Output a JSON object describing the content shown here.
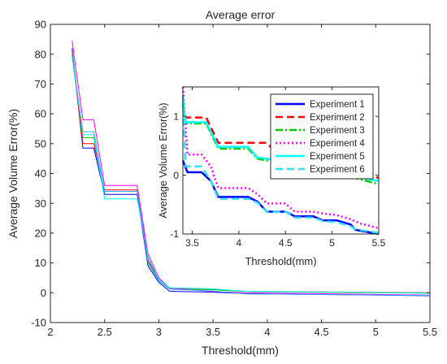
{
  "chart_data": [
    {
      "type": "line",
      "title": "Average error",
      "xlabel": "Threshold(mm)",
      "ylabel": "Average Volume Error(%)",
      "xlim": [
        2,
        5.5
      ],
      "ylim": [
        -10,
        90
      ],
      "xticks": [
        "2",
        "2.5",
        "3",
        "3.5",
        "4",
        "4.5",
        "5",
        "5.5"
      ],
      "yticks": [
        "-10",
        "0",
        "10",
        "20",
        "30",
        "40",
        "50",
        "60",
        "70",
        "80",
        "90"
      ],
      "grid": false,
      "series": [
        {
          "name": "Experiment 1",
          "color": "#0000ff",
          "x": [
            2.2,
            2.3,
            2.4,
            2.5,
            2.8,
            2.9,
            3.0,
            3.1,
            3.5,
            3.8,
            5.5
          ],
          "y": [
            82,
            48.5,
            48.5,
            33,
            33,
            9,
            3.5,
            0.5,
            0.2,
            -0.3,
            -1
          ]
        },
        {
          "name": "Experiment 2",
          "color": "#ff0000",
          "x": [
            2.2,
            2.3,
            2.4,
            2.5,
            2.8,
            2.9,
            3.0,
            3.1,
            3.5,
            3.8,
            5.5
          ],
          "y": [
            80,
            50,
            50,
            34.5,
            34.5,
            11,
            4.5,
            1.5,
            1.2,
            0.5,
            0
          ]
        },
        {
          "name": "Experiment 3",
          "color": "#00cc00",
          "x": [
            2.2,
            2.3,
            2.4,
            2.5,
            2.8,
            2.9,
            3.0,
            3.1,
            3.5,
            3.8,
            5.5
          ],
          "y": [
            81,
            52,
            52,
            34,
            34,
            10,
            4,
            1.3,
            1,
            0.4,
            -0.2
          ]
        },
        {
          "name": "Experiment 4",
          "color": "#ff00ff",
          "x": [
            2.2,
            2.3,
            2.4,
            2.5,
            2.8,
            2.9,
            3.0,
            3.1,
            3.5,
            3.8,
            5.5
          ],
          "y": [
            84.5,
            58,
            58,
            36,
            36,
            13,
            5,
            1.5,
            0.4,
            0,
            -0.8
          ]
        },
        {
          "name": "Experiment 5",
          "color": "#00ffff",
          "x": [
            2.2,
            2.3,
            2.4,
            2.5,
            2.8,
            2.9,
            3.0,
            3.1,
            3.5,
            3.8,
            5.5
          ],
          "y": [
            79,
            53,
            53,
            31.5,
            31.5,
            12,
            4.5,
            1.7,
            1.3,
            0.5,
            -0.1
          ]
        },
        {
          "name": "Experiment 6",
          "color": "#33aaff",
          "x": [
            2.2,
            2.3,
            2.4,
            2.5,
            2.8,
            2.9,
            3.0,
            3.1,
            3.5,
            3.8,
            5.5
          ],
          "y": [
            79.5,
            54,
            54,
            34,
            34,
            10.5,
            4,
            1.2,
            0.6,
            -0.4,
            -0.9
          ]
        }
      ]
    },
    {
      "type": "line",
      "title": "",
      "xlabel": "Threshold(mm)",
      "ylabel": "Average Volume Error(%)",
      "xlim": [
        3.4,
        5.5
      ],
      "ylim": [
        -1,
        1.5
      ],
      "xticks": [
        "3.5",
        "4",
        "4.5",
        "5",
        "5.5"
      ],
      "yticks": [
        "-1",
        "0",
        "1"
      ],
      "legend_position": "top-right",
      "series": [
        {
          "name": "Experiment 1",
          "color": "#0000ff",
          "dash": "solid",
          "x": [
            3.4,
            3.45,
            3.6,
            3.7,
            3.78,
            4.1,
            4.2,
            4.3,
            4.5,
            4.6,
            4.8,
            4.9,
            5.05,
            5.2,
            5.25,
            5.5
          ],
          "y": [
            0.25,
            0.05,
            0.05,
            -0.1,
            -0.37,
            -0.37,
            -0.45,
            -0.62,
            -0.62,
            -0.7,
            -0.7,
            -0.77,
            -0.77,
            -0.84,
            -0.93,
            -1.0
          ]
        },
        {
          "name": "Experiment 2",
          "color": "#ff0000",
          "dash": "dash",
          "x": [
            3.4,
            3.43,
            3.65,
            3.78,
            4.3,
            4.4,
            4.6,
            4.9,
            5.1,
            5.2,
            5.35,
            5.5
          ],
          "y": [
            1.2,
            0.98,
            0.98,
            0.55,
            0.55,
            0.38,
            0.3,
            0.15,
            0.12,
            0.1,
            0.05,
            -0.05
          ]
        },
        {
          "name": "Experiment 3",
          "color": "#00cc00",
          "dash": "dashdot",
          "x": [
            3.4,
            3.43,
            3.65,
            3.78,
            4.1,
            4.2,
            4.3,
            4.5,
            4.8,
            4.9,
            5.05,
            5.15,
            5.25,
            5.5
          ],
          "y": [
            1.2,
            0.88,
            0.88,
            0.45,
            0.45,
            0.28,
            0.25,
            0.2,
            0.15,
            0.1,
            0.05,
            0.0,
            -0.05,
            -0.15
          ]
        },
        {
          "name": "Experiment 4",
          "color": "#ff00ff",
          "dash": "dot",
          "x": [
            3.4,
            3.45,
            3.6,
            3.7,
            3.78,
            4.1,
            4.2,
            4.3,
            4.5,
            4.6,
            4.8,
            4.9,
            5.05,
            5.2,
            5.3,
            5.5
          ],
          "y": [
            1.5,
            0.35,
            0.35,
            0.15,
            -0.22,
            -0.22,
            -0.32,
            -0.48,
            -0.48,
            -0.62,
            -0.62,
            -0.65,
            -0.68,
            -0.75,
            -0.82,
            -0.9
          ]
        },
        {
          "name": "Experiment 5",
          "color": "#00ffff",
          "dash": "solid",
          "x": [
            3.4,
            3.43,
            3.65,
            3.78,
            4.1,
            4.2,
            4.3,
            4.5,
            4.8,
            4.9,
            5.05,
            5.15,
            5.25,
            5.5
          ],
          "y": [
            1.3,
            0.9,
            0.9,
            0.48,
            0.48,
            0.3,
            0.28,
            0.22,
            0.17,
            0.12,
            0.08,
            0.02,
            -0.02,
            -0.1
          ]
        },
        {
          "name": "Experiment 6",
          "color": "#33ddff",
          "dash": "dash",
          "x": [
            3.4,
            3.43,
            3.6,
            3.7,
            3.78,
            4.1,
            4.2,
            4.3,
            4.5,
            4.6,
            4.8,
            4.9,
            5.05,
            5.2,
            5.25,
            5.5
          ],
          "y": [
            1.35,
            0.15,
            0.15,
            -0.1,
            -0.4,
            -0.4,
            -0.47,
            -0.62,
            -0.62,
            -0.72,
            -0.72,
            -0.78,
            -0.8,
            -0.87,
            -0.92,
            -0.98
          ]
        }
      ]
    }
  ]
}
